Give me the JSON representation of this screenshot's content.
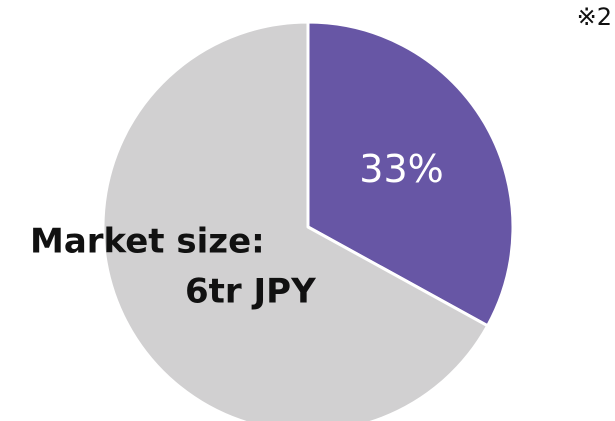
{
  "chart_data": {
    "type": "pie",
    "categories": [
      null,
      null
    ],
    "values": [
      33,
      67
    ],
    "value_labels": [
      "33%",
      null
    ],
    "colors": [
      "#6756a5",
      "#d1d0d1"
    ],
    "annotations": [
      "Market size:",
      "6tr JPY"
    ],
    "note": "※2"
  }
}
